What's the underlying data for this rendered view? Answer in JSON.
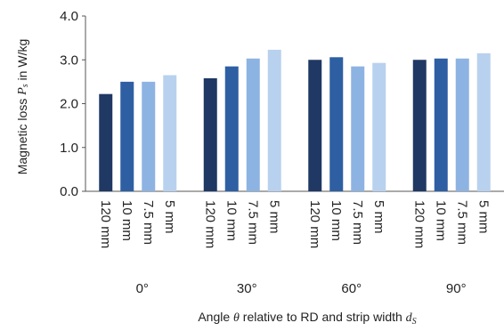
{
  "chart_data": {
    "type": "bar",
    "categories": [
      "0°",
      "30°",
      "60°",
      "90°"
    ],
    "bar_labels": [
      "120 mm",
      "10 mm",
      "7.5 mm",
      "5 mm"
    ],
    "series": [
      {
        "name": "120 mm",
        "color": "#1f3864",
        "values": [
          2.22,
          2.58,
          3.0,
          3.0
        ]
      },
      {
        "name": "10 mm",
        "color": "#2e5fa3",
        "values": [
          2.5,
          2.85,
          3.06,
          3.03
        ]
      },
      {
        "name": "7.5 mm",
        "color": "#8db3e2",
        "values": [
          2.5,
          3.03,
          2.85,
          3.03
        ]
      },
      {
        "name": "5 mm",
        "color": "#b8d1ee",
        "values": [
          2.65,
          3.23,
          2.93,
          3.15
        ]
      }
    ],
    "yticks": [
      "0.0",
      "1.0",
      "2.0",
      "3.0",
      "4.0"
    ],
    "ylim": [
      0,
      4
    ],
    "ylabel_text": "Magnetic loss ",
    "ylabel_symbol": "P",
    "ylabel_sub": "s",
    "ylabel_unit": " in W/kg",
    "xlabel_a": "Angle ",
    "xlabel_theta": "θ",
    "xlabel_b": " relative  to RD and strip width ",
    "xlabel_symbol": "d",
    "xlabel_sub": "S",
    "grid": false,
    "legend": "none"
  }
}
